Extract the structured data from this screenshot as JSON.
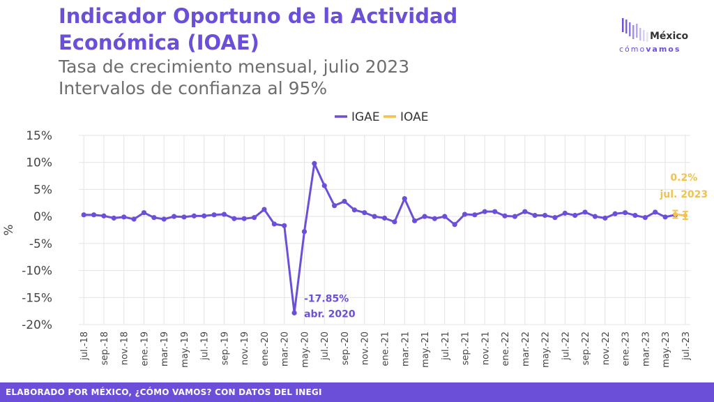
{
  "header": {
    "title": "Indicador Oportuno de la Actividad Económica (IOAE)",
    "subtitle_1": "Tasa de crecimiento mensual, julio 2023",
    "subtitle_2": "Intervalos de confianza al 95%"
  },
  "logo": {
    "top": "México",
    "bottom_a": "cómo",
    "bottom_b": "vamos"
  },
  "footer": {
    "text": "ELABORADO POR MÉXICO, ¿CÓMO VAMOS? CON DATOS DEL INEGI"
  },
  "colors": {
    "igae": "#6c4fd8",
    "ioae": "#f2c14e",
    "grid": "#e3e3e3",
    "footer": "#6c4fd8"
  },
  "chart_data": {
    "type": "line",
    "ylabel": "%",
    "ylim": [
      -20,
      15
    ],
    "yticks": [
      15,
      10,
      5,
      0,
      -5,
      -10,
      -15,
      -20
    ],
    "ytick_labels": [
      "15%",
      "10%",
      "5%",
      "0%",
      "-5%",
      "-10%",
      "-15%",
      "-20%"
    ],
    "grid": true,
    "legend_position": "top-center",
    "x": [
      "jul.-18",
      "ago.-18",
      "sep.-18",
      "oct.-18",
      "nov.-18",
      "dic.-18",
      "ene.-19",
      "feb.-19",
      "mar.-19",
      "abr.-19",
      "may.-19",
      "jun.-19",
      "jul.-19",
      "ago.-19",
      "sep.-19",
      "oct.-19",
      "nov.-19",
      "dic.-19",
      "ene.-20",
      "feb.-20",
      "mar.-20",
      "abr.-20",
      "may.-20",
      "jun.-20",
      "jul.-20",
      "ago.-20",
      "sep.-20",
      "oct.-20",
      "nov.-20",
      "dic.-20",
      "ene.-21",
      "feb.-21",
      "mar.-21",
      "abr.-21",
      "may.-21",
      "jun.-21",
      "jul.-21",
      "ago.-21",
      "sep.-21",
      "oct.-21",
      "nov.-21",
      "dic.-21",
      "ene.-22",
      "feb.-22",
      "mar.-22",
      "abr.-22",
      "may.-22",
      "jun.-22",
      "jul.-22",
      "ago.-22",
      "sep.-22",
      "oct.-22",
      "nov.-22",
      "dic.-22",
      "ene.-23",
      "feb.-23",
      "mar.-23",
      "abr.-23",
      "may.-23",
      "jun.-23",
      "jul.-23"
    ],
    "x_tick_labels": [
      "jul.-18",
      "sep.-18",
      "nov.-18",
      "ene.-19",
      "mar.-19",
      "may.-19",
      "jul.-19",
      "sep.-19",
      "nov.-19",
      "ene.-20",
      "mar.-20",
      "may.-20",
      "jul.-20",
      "sep.-20",
      "nov.-20",
      "ene.-21",
      "mar.-21",
      "may.-21",
      "jul.-21",
      "sep.-21",
      "nov.-21",
      "ene.-22",
      "mar.-22",
      "may.-22",
      "jul.-22",
      "sep.-22",
      "nov.-22",
      "ene.-23",
      "mar.-23",
      "may.-23",
      "jul.-23"
    ],
    "series": [
      {
        "name": "IGAE",
        "color": "#6c4fd8",
        "values": [
          0.3,
          0.3,
          0.1,
          -0.3,
          -0.1,
          -0.5,
          0.7,
          -0.2,
          -0.5,
          0.0,
          -0.1,
          0.1,
          0.1,
          0.3,
          0.4,
          -0.4,
          -0.4,
          -0.2,
          1.3,
          -1.4,
          -1.7,
          -17.85,
          -2.8,
          9.8,
          5.7,
          2.0,
          2.8,
          1.2,
          0.7,
          0.0,
          -0.3,
          -1.0,
          3.3,
          -0.8,
          0.0,
          -0.4,
          0.0,
          -1.5,
          0.4,
          0.3,
          0.9,
          0.9,
          0.1,
          0.0,
          0.9,
          0.2,
          0.2,
          -0.2,
          0.6,
          0.2,
          0.8,
          0.0,
          -0.3,
          0.5,
          0.7,
          0.2,
          -0.2,
          0.8,
          -0.1,
          0.3,
          null
        ]
      },
      {
        "name": "IOAE",
        "color": "#f2c14e",
        "values": [
          null,
          null,
          null,
          null,
          null,
          null,
          null,
          null,
          null,
          null,
          null,
          null,
          null,
          null,
          null,
          null,
          null,
          null,
          null,
          null,
          null,
          null,
          null,
          null,
          null,
          null,
          null,
          null,
          null,
          null,
          null,
          null,
          null,
          null,
          null,
          null,
          null,
          null,
          null,
          null,
          null,
          null,
          null,
          null,
          null,
          null,
          null,
          null,
          null,
          null,
          null,
          null,
          null,
          null,
          null,
          null,
          null,
          null,
          null,
          0.4,
          0.2
        ],
        "ci_low": [
          null,
          null,
          null,
          null,
          null,
          null,
          null,
          null,
          null,
          null,
          null,
          null,
          null,
          null,
          null,
          null,
          null,
          null,
          null,
          null,
          null,
          null,
          null,
          null,
          null,
          null,
          null,
          null,
          null,
          null,
          null,
          null,
          null,
          null,
          null,
          null,
          null,
          null,
          null,
          null,
          null,
          null,
          null,
          null,
          null,
          null,
          null,
          null,
          null,
          null,
          null,
          null,
          null,
          null,
          null,
          null,
          null,
          null,
          null,
          -0.3,
          -0.5
        ],
        "ci_high": [
          null,
          null,
          null,
          null,
          null,
          null,
          null,
          null,
          null,
          null,
          null,
          null,
          null,
          null,
          null,
          null,
          null,
          null,
          null,
          null,
          null,
          null,
          null,
          null,
          null,
          null,
          null,
          null,
          null,
          null,
          null,
          null,
          null,
          null,
          null,
          null,
          null,
          null,
          null,
          null,
          null,
          null,
          null,
          null,
          null,
          null,
          null,
          null,
          null,
          null,
          null,
          null,
          null,
          null,
          null,
          null,
          null,
          null,
          null,
          1.1,
          0.9
        ]
      }
    ],
    "annotations": [
      {
        "lines": [
          "-17.85%",
          "abr. 2020"
        ],
        "x": "abr.-20",
        "series": "IGAE"
      },
      {
        "lines": [
          "0.2%",
          "jul. 2023"
        ],
        "x": "jul.-23",
        "series": "IOAE"
      }
    ]
  }
}
